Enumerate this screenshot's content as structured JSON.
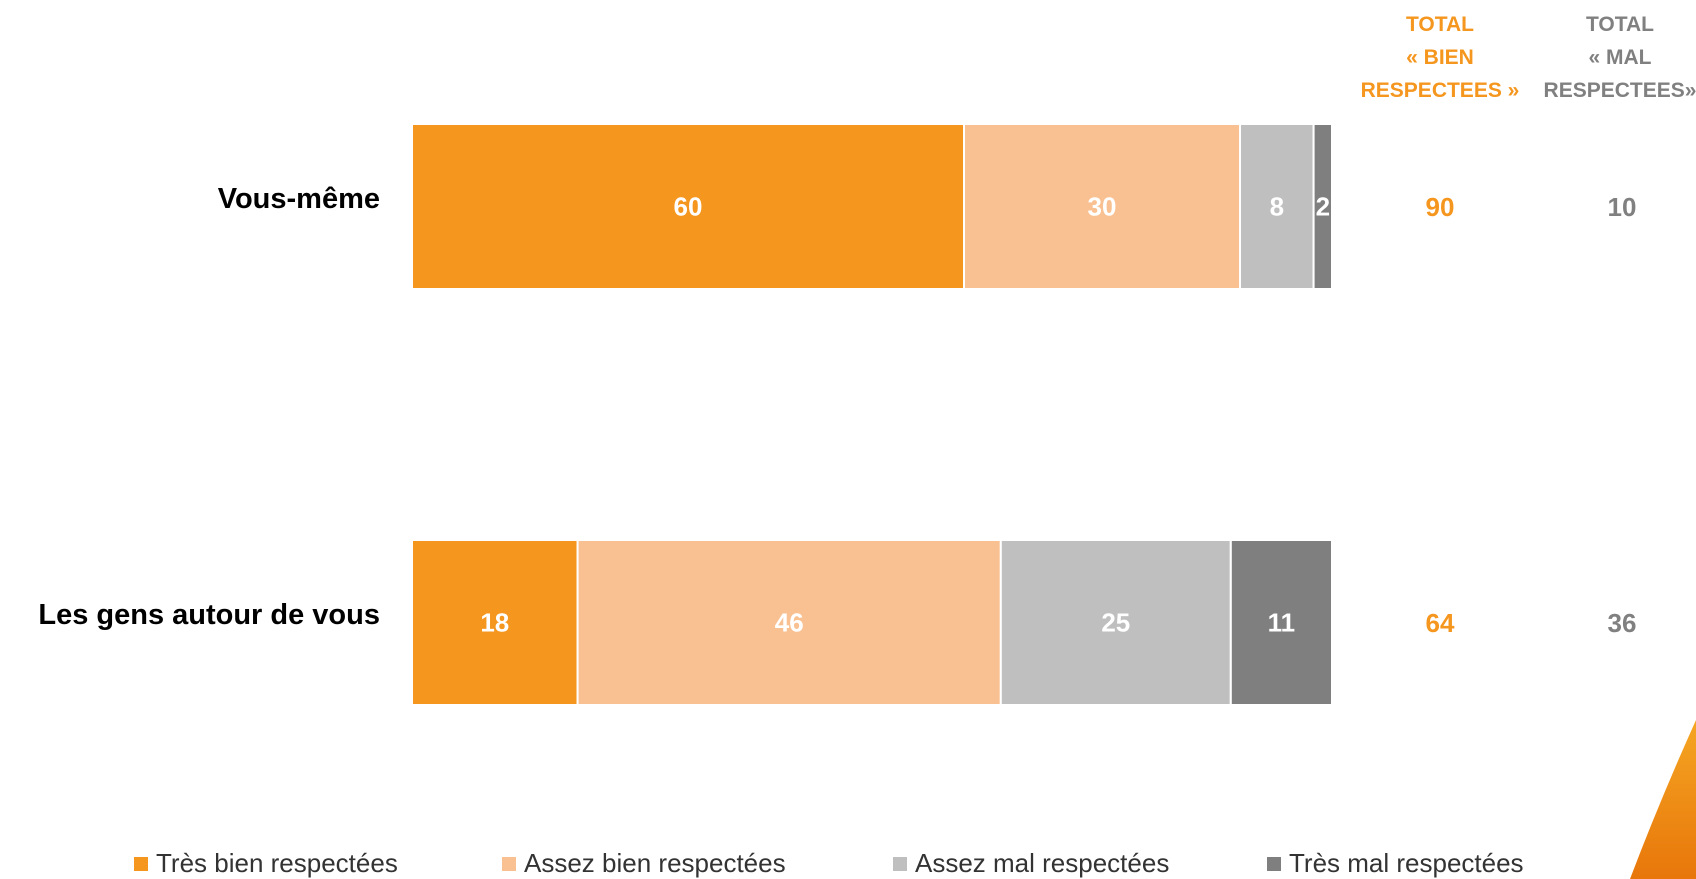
{
  "header": {
    "total_bien": [
      "TOTAL",
      "« BIEN",
      "RESPECTEES »"
    ],
    "total_mal": [
      "TOTAL",
      "« MAL",
      "RESPECTEES»"
    ]
  },
  "colors": {
    "tres_bien": "#F5961E",
    "assez_bien": "#F9C092",
    "assez_mal": "#BFBFBF",
    "tres_mal": "#7F7F7F",
    "total_bien_text": "#F5961E",
    "total_mal_text": "#808080"
  },
  "chart_data": {
    "type": "bar",
    "orientation": "horizontal",
    "stacked": true,
    "categories": [
      "Vous-même",
      "Les gens autour de vous"
    ],
    "series": [
      {
        "name": "Très bien respectées",
        "values": [
          60,
          18
        ]
      },
      {
        "name": "Assez bien respectées",
        "values": [
          30,
          46
        ]
      },
      {
        "name": "Assez mal respectées",
        "values": [
          8,
          25
        ]
      },
      {
        "name": "Très mal respectées",
        "values": [
          2,
          11
        ]
      }
    ],
    "totals": {
      "bien": [
        90,
        64
      ],
      "mal": [
        10,
        36
      ]
    },
    "xlim": [
      0,
      100
    ],
    "grid": false,
    "legend": "bottom"
  }
}
